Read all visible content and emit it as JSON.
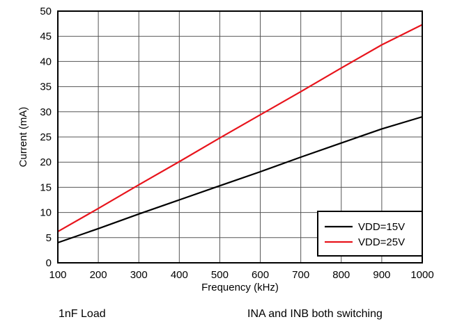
{
  "chart_data": {
    "type": "line",
    "title": "",
    "xlabel": "Frequency (kHz)",
    "ylabel": "Current (mA)",
    "xlim": [
      100,
      1000
    ],
    "ylim": [
      0,
      50
    ],
    "xticks": [
      100,
      200,
      300,
      400,
      500,
      600,
      700,
      800,
      900,
      1000
    ],
    "yticks": [
      0,
      5,
      10,
      15,
      20,
      25,
      30,
      35,
      40,
      45,
      50
    ],
    "grid": true,
    "legend_position": "bottom-right",
    "series": [
      {
        "name": "VDD=15V",
        "color": "#000000",
        "x": [
          100,
          200,
          300,
          400,
          500,
          600,
          700,
          800,
          900,
          1000
        ],
        "y": [
          4.0,
          6.8,
          9.7,
          12.5,
          15.3,
          18.1,
          21.0,
          23.8,
          26.6,
          29.0
        ]
      },
      {
        "name": "VDD=25V",
        "color": "#e8141c",
        "x": [
          100,
          200,
          300,
          400,
          500,
          600,
          700,
          800,
          900,
          1000
        ],
        "y": [
          6.2,
          10.8,
          15.5,
          20.1,
          24.8,
          29.4,
          34.0,
          38.7,
          43.3,
          47.3
        ]
      }
    ]
  },
  "notes": {
    "left": "1nF Load",
    "right": "INA and INB both switching"
  }
}
